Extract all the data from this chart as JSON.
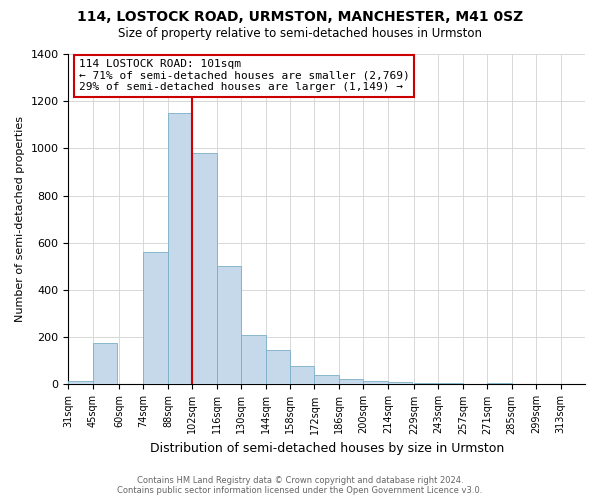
{
  "title": "114, LOSTOCK ROAD, URMSTON, MANCHESTER, M41 0SZ",
  "subtitle": "Size of property relative to semi-detached houses in Urmston",
  "xlabel": "Distribution of semi-detached houses by size in Urmston",
  "ylabel": "Number of semi-detached properties",
  "bin_labels": [
    "31sqm",
    "45sqm",
    "60sqm",
    "74sqm",
    "88sqm",
    "102sqm",
    "116sqm",
    "130sqm",
    "144sqm",
    "158sqm",
    "172sqm",
    "186sqm",
    "200sqm",
    "214sqm",
    "229sqm",
    "243sqm",
    "257sqm",
    "271sqm",
    "285sqm",
    "299sqm",
    "313sqm"
  ],
  "bin_lefts": [
    31,
    45,
    60,
    74,
    88,
    102,
    116,
    130,
    144,
    158,
    172,
    186,
    200,
    214,
    229,
    243,
    257,
    271,
    285,
    299,
    313
  ],
  "bin_width": 14,
  "bar_heights": [
    15,
    175,
    0,
    560,
    1150,
    980,
    500,
    210,
    145,
    80,
    40,
    22,
    15,
    10,
    8,
    6,
    0,
    5,
    0,
    0,
    0
  ],
  "bar_color": "#c6d9ea",
  "bar_edgecolor": "#7aafc8",
  "property_line_x": 102,
  "annotation_title": "114 LOSTOCK ROAD: 101sqm",
  "annotation_line1": "← 71% of semi-detached houses are smaller (2,769)",
  "annotation_line2": "29% of semi-detached houses are larger (1,149) →",
  "annotation_box_facecolor": "#ffffff",
  "annotation_box_edgecolor": "#cc0000",
  "vline_color": "#cc0000",
  "ylim": [
    0,
    1400
  ],
  "yticks": [
    0,
    200,
    400,
    600,
    800,
    1000,
    1200,
    1400
  ],
  "footer1": "Contains HM Land Registry data © Crown copyright and database right 2024.",
  "footer2": "Contains public sector information licensed under the Open Government Licence v3.0.",
  "background_color": "#ffffff",
  "grid_color": "#d8d8d8"
}
